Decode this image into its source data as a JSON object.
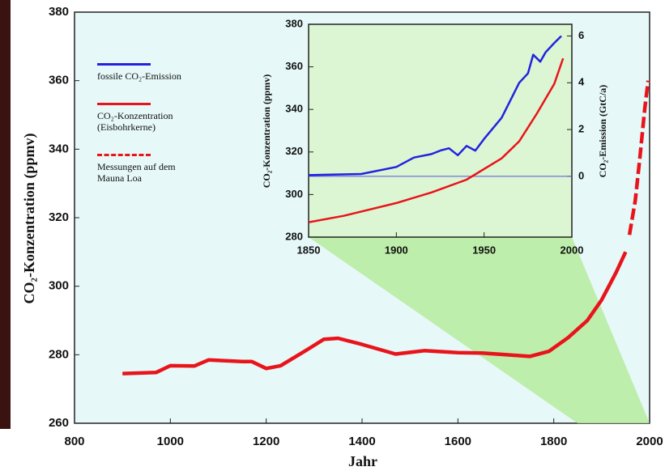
{
  "chart_data": [
    {
      "type": "line",
      "y_label": "CO₂-Konzentration (ppmv)",
      "x_label": "Jahr",
      "xlim": [
        800,
        2000
      ],
      "xticks": [
        800,
        1000,
        1200,
        1400,
        1600,
        1800,
        2000
      ],
      "ylim": [
        260,
        380
      ],
      "yticks": [
        260,
        280,
        300,
        320,
        340,
        360,
        380
      ],
      "series": [
        {
          "name": "CO₂-Konzentration (Eisbohrkerne)",
          "color": "#e8141b",
          "dashed": false,
          "x": [
            900,
            970,
            1000,
            1050,
            1080,
            1150,
            1170,
            1200,
            1230,
            1280,
            1320,
            1350,
            1400,
            1470,
            1530,
            1600,
            1650,
            1700,
            1750,
            1790,
            1830,
            1870,
            1900,
            1930,
            1950
          ],
          "values": [
            274.5,
            274.8,
            276.8,
            276.7,
            278.5,
            278,
            278,
            276,
            276.8,
            281,
            284.5,
            284.8,
            283,
            280.2,
            281.2,
            280.6,
            280.5,
            280,
            279.5,
            281,
            285,
            290,
            296,
            304,
            310
          ]
        },
        {
          "name": "Messungen auf dem Mauna Loa",
          "color": "#e8141b",
          "dashed": true,
          "x": [
            1958,
            1970,
            1980,
            1990,
            1997
          ],
          "values": [
            315,
            325,
            338,
            352,
            360
          ]
        }
      ]
    },
    {
      "type": "line",
      "y_label": "CO₂-Konzentration (ppmv)",
      "y2_label": "CO₂-Emission (GtC/a)",
      "xlim": [
        1850,
        2000
      ],
      "xticks": [
        1850,
        1900,
        1950,
        2000
      ],
      "ylim": [
        280,
        380
      ],
      "yticks": [
        280,
        300,
        320,
        340,
        360,
        380
      ],
      "y2lim": [
        -2.6,
        6.5
      ],
      "y2ticks": [
        0,
        2,
        4,
        6
      ],
      "series": [
        {
          "name": "fossile CO₂-Emission",
          "color": "#2222e0",
          "axis": "y2",
          "dashed": false,
          "x": [
            1850,
            1880,
            1900,
            1910,
            1920,
            1925,
            1930,
            1935,
            1940,
            1945,
            1950,
            1960,
            1970,
            1975,
            1978,
            1982,
            1985,
            1990,
            1994
          ],
          "values": [
            0.05,
            0.1,
            0.4,
            0.8,
            0.95,
            1.1,
            1.2,
            0.9,
            1.3,
            1.1,
            1.6,
            2.5,
            4.0,
            4.4,
            5.2,
            4.9,
            5.3,
            5.7,
            6.0
          ]
        },
        {
          "color": "#e8141b",
          "dashed": false,
          "x": [
            1850,
            1870,
            1900,
            1920,
            1940,
            1960,
            1970,
            1980,
            1990,
            1995
          ],
          "values": [
            287,
            290,
            296,
            301,
            307,
            317,
            325,
            338,
            352,
            364
          ]
        }
      ]
    }
  ]
}
